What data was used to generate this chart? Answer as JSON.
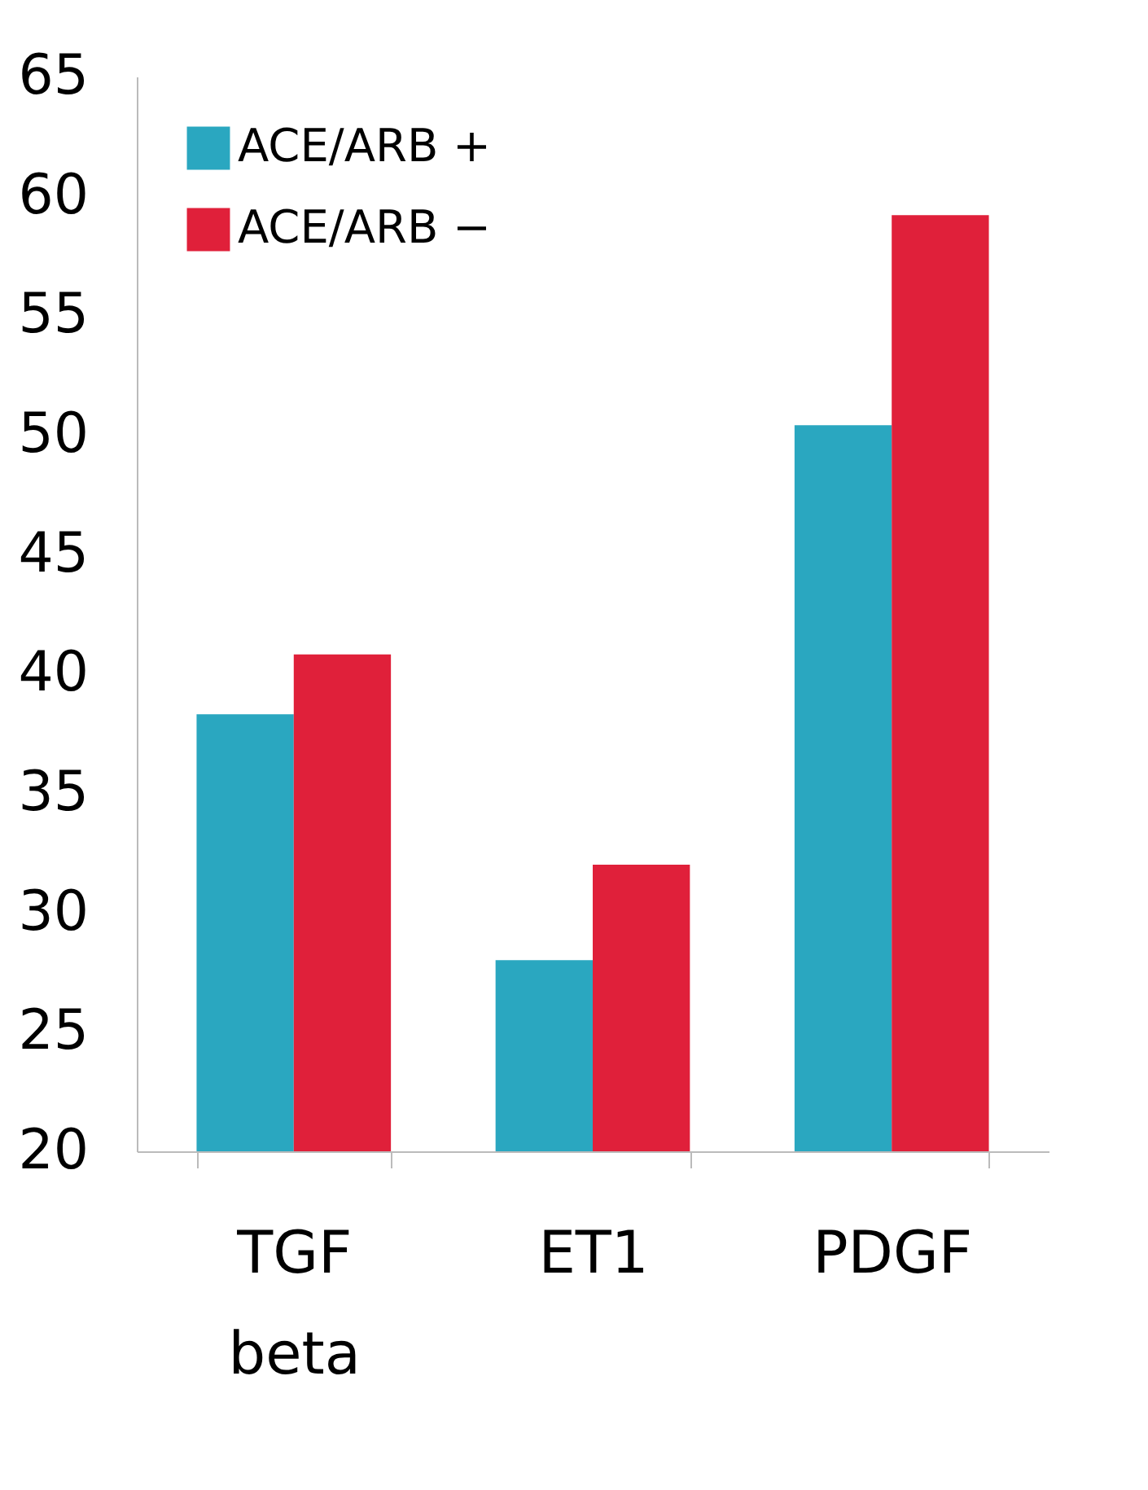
{
  "chart_data": {
    "type": "bar",
    "categories": [
      "TGF beta",
      "ET1",
      "PDGF"
    ],
    "series": [
      {
        "name": "ACE/ARB +",
        "color": "#2aa7c0",
        "values": [
          38.3,
          28,
          50.4
        ]
      },
      {
        "name": "ACE/ARB −",
        "color": "#e0203a",
        "values": [
          40.8,
          32,
          59.2
        ]
      }
    ],
    "ylim": [
      20,
      65
    ],
    "yticks": [
      20,
      25,
      30,
      35,
      40,
      45,
      50,
      55,
      60,
      65
    ],
    "grid": false,
    "legend": "top left"
  }
}
